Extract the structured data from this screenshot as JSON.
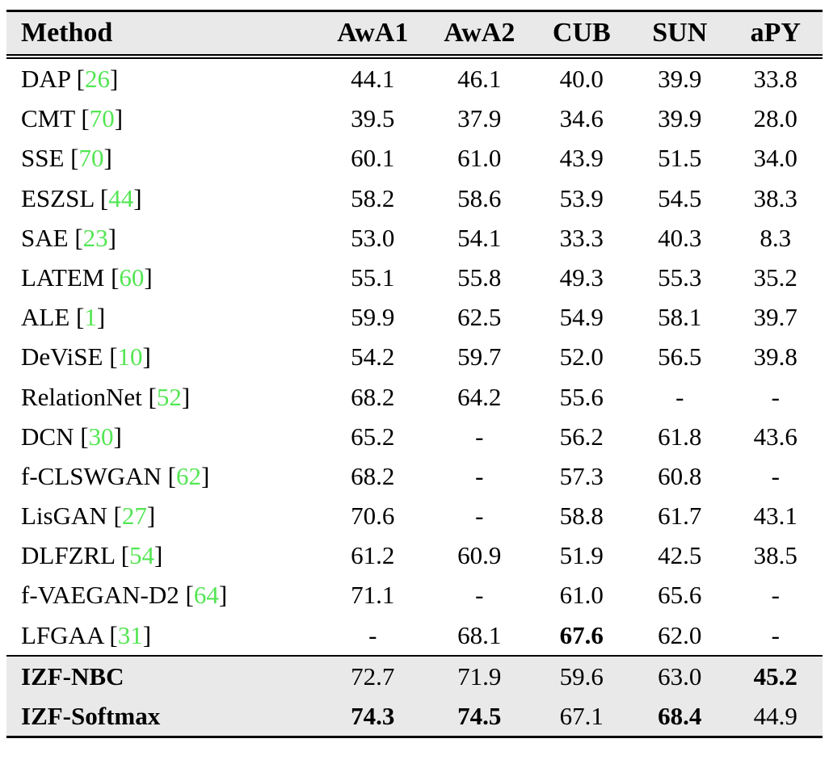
{
  "table": {
    "citation_color": "#53e653",
    "shade_color": "#e9e9e9",
    "columns": [
      "Method",
      "AwA1",
      "AwA2",
      "CUB",
      "SUN",
      "aPY"
    ],
    "rows": [
      {
        "method": "DAP",
        "cite": "26",
        "method_bold": false,
        "shaded": false,
        "rule_above": false,
        "values": [
          "44.1",
          "46.1",
          "40.0",
          "39.9",
          "33.8"
        ],
        "bold": [
          false,
          false,
          false,
          false,
          false
        ]
      },
      {
        "method": "CMT",
        "cite": "70",
        "method_bold": false,
        "shaded": false,
        "rule_above": false,
        "values": [
          "39.5",
          "37.9",
          "34.6",
          "39.9",
          "28.0"
        ],
        "bold": [
          false,
          false,
          false,
          false,
          false
        ]
      },
      {
        "method": "SSE",
        "cite": "70",
        "method_bold": false,
        "shaded": false,
        "rule_above": false,
        "values": [
          "60.1",
          "61.0",
          "43.9",
          "51.5",
          "34.0"
        ],
        "bold": [
          false,
          false,
          false,
          false,
          false
        ]
      },
      {
        "method": "ESZSL",
        "cite": "44",
        "method_bold": false,
        "shaded": false,
        "rule_above": false,
        "values": [
          "58.2",
          "58.6",
          "53.9",
          "54.5",
          "38.3"
        ],
        "bold": [
          false,
          false,
          false,
          false,
          false
        ]
      },
      {
        "method": "SAE",
        "cite": "23",
        "method_bold": false,
        "shaded": false,
        "rule_above": false,
        "values": [
          "53.0",
          "54.1",
          "33.3",
          "40.3",
          "8.3"
        ],
        "bold": [
          false,
          false,
          false,
          false,
          false
        ]
      },
      {
        "method": "LATEM",
        "cite": "60",
        "method_bold": false,
        "shaded": false,
        "rule_above": false,
        "values": [
          "55.1",
          "55.8",
          "49.3",
          "55.3",
          "35.2"
        ],
        "bold": [
          false,
          false,
          false,
          false,
          false
        ]
      },
      {
        "method": "ALE",
        "cite": "1",
        "method_bold": false,
        "shaded": false,
        "rule_above": false,
        "values": [
          "59.9",
          "62.5",
          "54.9",
          "58.1",
          "39.7"
        ],
        "bold": [
          false,
          false,
          false,
          false,
          false
        ]
      },
      {
        "method": "DeViSE",
        "cite": "10",
        "method_bold": false,
        "shaded": false,
        "rule_above": false,
        "values": [
          "54.2",
          "59.7",
          "52.0",
          "56.5",
          "39.8"
        ],
        "bold": [
          false,
          false,
          false,
          false,
          false
        ]
      },
      {
        "method": "RelationNet",
        "cite": "52",
        "method_bold": false,
        "shaded": false,
        "rule_above": false,
        "values": [
          "68.2",
          "64.2",
          "55.6",
          "-",
          "-"
        ],
        "bold": [
          false,
          false,
          false,
          false,
          false
        ]
      },
      {
        "method": "DCN",
        "cite": "30",
        "method_bold": false,
        "shaded": false,
        "rule_above": false,
        "values": [
          "65.2",
          "-",
          "56.2",
          "61.8",
          "43.6"
        ],
        "bold": [
          false,
          false,
          false,
          false,
          false
        ]
      },
      {
        "method": "f-CLSWGAN",
        "cite": "62",
        "method_bold": false,
        "shaded": false,
        "rule_above": false,
        "values": [
          "68.2",
          "-",
          "57.3",
          "60.8",
          "-"
        ],
        "bold": [
          false,
          false,
          false,
          false,
          false
        ]
      },
      {
        "method": "LisGAN",
        "cite": "27",
        "method_bold": false,
        "shaded": false,
        "rule_above": false,
        "values": [
          "70.6",
          "-",
          "58.8",
          "61.7",
          "43.1"
        ],
        "bold": [
          false,
          false,
          false,
          false,
          false
        ]
      },
      {
        "method": "DLFZRL",
        "cite": "54",
        "method_bold": false,
        "shaded": false,
        "rule_above": false,
        "values": [
          "61.2",
          "60.9",
          "51.9",
          "42.5",
          "38.5"
        ],
        "bold": [
          false,
          false,
          false,
          false,
          false
        ]
      },
      {
        "method": "f-VAEGAN-D2",
        "cite": "64",
        "method_bold": false,
        "shaded": false,
        "rule_above": false,
        "values": [
          "71.1",
          "-",
          "61.0",
          "65.6",
          "-"
        ],
        "bold": [
          false,
          false,
          false,
          false,
          false
        ]
      },
      {
        "method": "LFGAA",
        "cite": "31",
        "method_bold": false,
        "shaded": false,
        "rule_above": false,
        "values": [
          "-",
          "68.1",
          "67.6",
          "62.0",
          "-"
        ],
        "bold": [
          false,
          false,
          true,
          false,
          false
        ]
      },
      {
        "method": "IZF-NBC",
        "cite": "",
        "method_bold": true,
        "shaded": true,
        "rule_above": true,
        "values": [
          "72.7",
          "71.9",
          "59.6",
          "63.0",
          "45.2"
        ],
        "bold": [
          false,
          false,
          false,
          false,
          true
        ]
      },
      {
        "method": "IZF-Softmax",
        "cite": "",
        "method_bold": true,
        "shaded": true,
        "rule_above": false,
        "values": [
          "74.3",
          "74.5",
          "67.1",
          "68.4",
          "44.9"
        ],
        "bold": [
          true,
          true,
          false,
          true,
          false
        ]
      }
    ]
  }
}
